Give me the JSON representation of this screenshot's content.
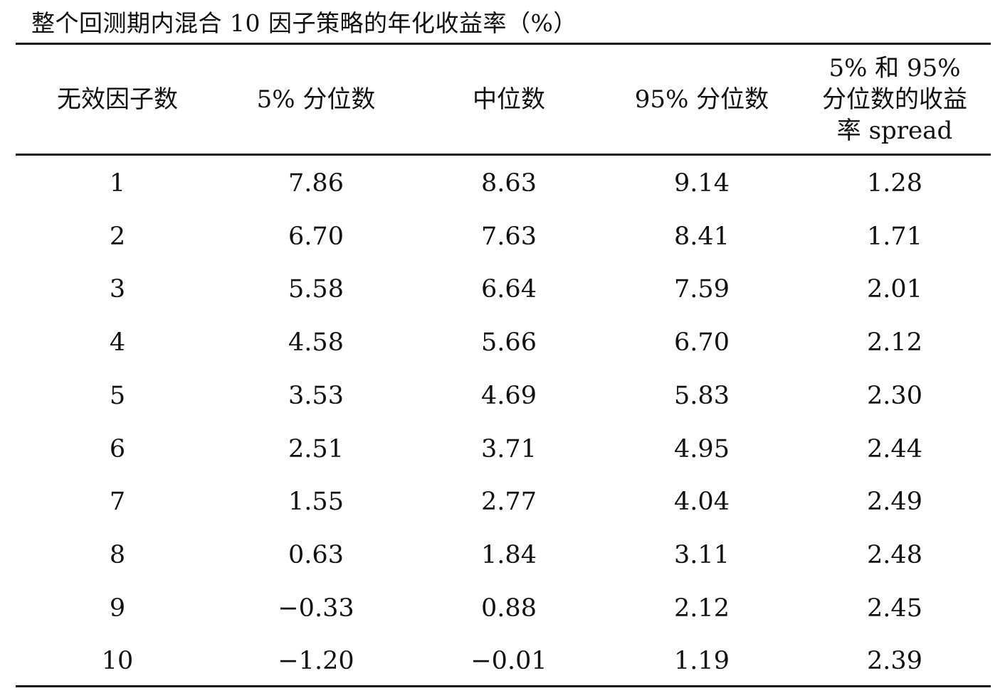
{
  "caption": "整个回测期内混合 10 因子策略的年化收益率（%）",
  "headers": [
    "无效因子数",
    "5% 分位数",
    "中位数",
    "95% 分位数"
  ],
  "header_spread_lines": [
    "5% 和 95%",
    "分位数的收益",
    "率 spread"
  ],
  "rows": [
    [
      "1",
      "7.86",
      "8.63",
      "9.14",
      "1.28"
    ],
    [
      "2",
      "6.70",
      "7.63",
      "8.41",
      "1.71"
    ],
    [
      "3",
      "5.58",
      "6.64",
      "7.59",
      "2.01"
    ],
    [
      "4",
      "4.58",
      "5.66",
      "6.70",
      "2.12"
    ],
    [
      "5",
      "3.53",
      "4.69",
      "5.83",
      "2.30"
    ],
    [
      "6",
      "2.51",
      "3.71",
      "4.95",
      "2.44"
    ],
    [
      "7",
      "1.55",
      "2.77",
      "4.04",
      "2.49"
    ],
    [
      "8",
      "0.63",
      "1.84",
      "3.11",
      "2.48"
    ],
    [
      "9",
      "−0.33",
      "0.88",
      "2.12",
      "2.45"
    ],
    [
      "10",
      "−1.20",
      "−0.01",
      "1.19",
      "2.39"
    ]
  ]
}
